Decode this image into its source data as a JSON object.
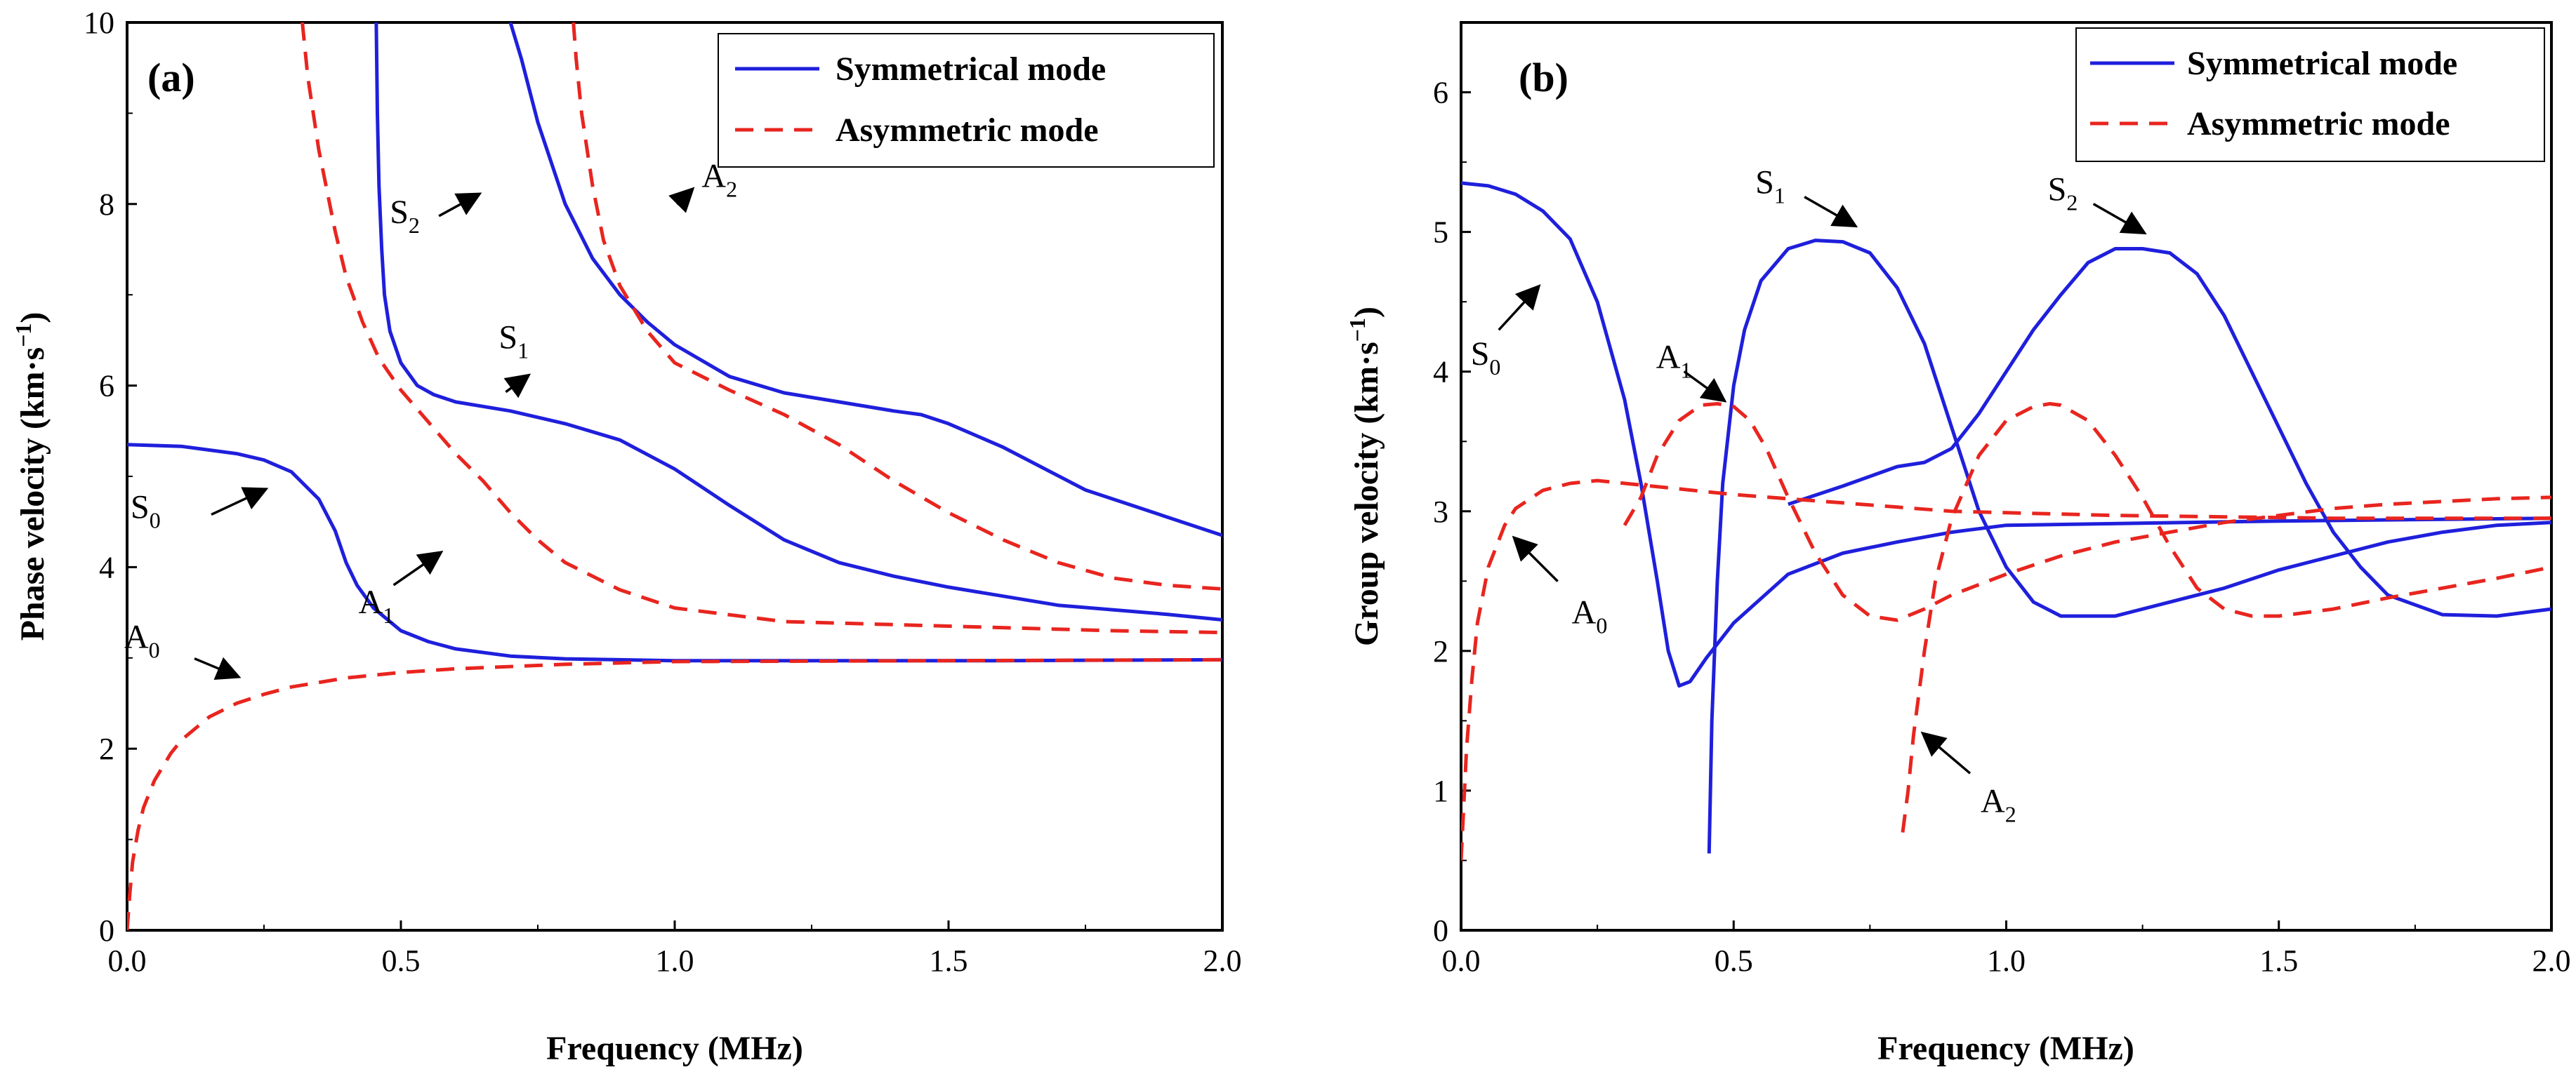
{
  "chart_data": [
    {
      "id": "a",
      "type": "line",
      "panel_label": "(a)",
      "xlabel": "Frequency (MHz)",
      "ylabel": "Phase velocity (km·s",
      "ylabel_sup": "−1",
      "ylabel_close": ")",
      "xlim": [
        0,
        2
      ],
      "ylim": [
        0,
        10
      ],
      "xticks": [
        "0.0",
        "0.5",
        "1.0",
        "1.5",
        "2.0"
      ],
      "yticks": [
        "0",
        "2",
        "4",
        "6",
        "8",
        "10"
      ],
      "legend": {
        "position": "top-right",
        "entries": [
          "Symmetrical mode",
          "Asymmetric mode"
        ]
      },
      "series": [
        {
          "name": "S0",
          "mode": "symmetrical",
          "x": [
            0,
            0.1,
            0.2,
            0.25,
            0.3,
            0.35,
            0.38,
            0.4,
            0.42,
            0.45,
            0.5,
            0.55,
            0.6,
            0.7,
            0.8,
            1.0,
            1.3,
            1.6,
            2.0
          ],
          "y": [
            5.35,
            5.33,
            5.25,
            5.18,
            5.05,
            4.75,
            4.4,
            4.05,
            3.8,
            3.55,
            3.3,
            3.18,
            3.1,
            3.02,
            2.99,
            2.97,
            2.97,
            2.97,
            2.98
          ]
        },
        {
          "name": "S1",
          "mode": "symmetrical",
          "x": [
            0.455,
            0.457,
            0.46,
            0.465,
            0.47,
            0.48,
            0.5,
            0.53,
            0.56,
            0.6,
            0.7,
            0.8,
            0.9,
            1.0,
            1.1,
            1.2,
            1.3,
            1.4,
            1.5,
            1.7,
            1.9,
            2.0
          ],
          "y": [
            10,
            9.0,
            8.2,
            7.5,
            7.0,
            6.6,
            6.25,
            6.0,
            5.9,
            5.82,
            5.72,
            5.58,
            5.4,
            5.08,
            4.68,
            4.3,
            4.05,
            3.9,
            3.78,
            3.58,
            3.48,
            3.42
          ]
        },
        {
          "name": "S2",
          "mode": "symmetrical",
          "x": [
            0.7,
            0.72,
            0.75,
            0.8,
            0.85,
            0.9,
            0.95,
            1.0,
            1.1,
            1.2,
            1.3,
            1.4,
            1.45,
            1.5,
            1.6,
            1.75,
            1.9,
            2.0
          ],
          "y": [
            10,
            9.6,
            8.9,
            8.0,
            7.4,
            7.0,
            6.7,
            6.45,
            6.1,
            5.92,
            5.82,
            5.72,
            5.68,
            5.58,
            5.32,
            4.85,
            4.55,
            4.35
          ]
        },
        {
          "name": "A0",
          "mode": "asymmetric",
          "x": [
            0,
            0.005,
            0.01,
            0.02,
            0.03,
            0.05,
            0.08,
            0.1,
            0.15,
            0.2,
            0.25,
            0.3,
            0.4,
            0.5,
            0.6,
            0.8,
            1.0,
            1.5,
            2.0
          ],
          "y": [
            0,
            0.4,
            0.75,
            1.1,
            1.35,
            1.65,
            1.95,
            2.1,
            2.35,
            2.5,
            2.6,
            2.68,
            2.78,
            2.84,
            2.88,
            2.93,
            2.96,
            2.97,
            2.98
          ]
        },
        {
          "name": "A1",
          "mode": "asymmetric",
          "x": [
            0.32,
            0.33,
            0.35,
            0.38,
            0.4,
            0.43,
            0.46,
            0.5,
            0.55,
            0.6,
            0.65,
            0.7,
            0.75,
            0.8,
            0.9,
            1.0,
            1.2,
            1.5,
            1.8,
            2.0
          ],
          "y": [
            10,
            9.4,
            8.6,
            7.7,
            7.2,
            6.7,
            6.3,
            5.95,
            5.6,
            5.25,
            4.95,
            4.6,
            4.3,
            4.05,
            3.75,
            3.55,
            3.4,
            3.35,
            3.3,
            3.28
          ]
        },
        {
          "name": "A2",
          "mode": "asymmetric",
          "x": [
            0.815,
            0.82,
            0.83,
            0.85,
            0.87,
            0.9,
            0.95,
            1.0,
            1.1,
            1.2,
            1.3,
            1.4,
            1.5,
            1.6,
            1.7,
            1.8,
            1.9,
            2.0
          ],
          "y": [
            10,
            9.6,
            9.0,
            8.2,
            7.6,
            7.1,
            6.6,
            6.25,
            5.95,
            5.68,
            5.35,
            4.95,
            4.6,
            4.3,
            4.05,
            3.88,
            3.8,
            3.76
          ]
        }
      ],
      "annotations": [
        {
          "label": "S",
          "sub": "0",
          "x": 0.25,
          "y": 4.85
        },
        {
          "label": "S",
          "sub": "1",
          "x": 0.73,
          "y": 6.1
        },
        {
          "label": "S",
          "sub": "2",
          "x": 0.64,
          "y": 8.1
        },
        {
          "label": "A",
          "sub": "0",
          "x": 0.2,
          "y": 2.8
        },
        {
          "label": "A",
          "sub": "1",
          "x": 0.57,
          "y": 4.15
        },
        {
          "label": "A",
          "sub": "2",
          "x": 1.03,
          "y": 8.15
        }
      ]
    },
    {
      "id": "b",
      "type": "line",
      "panel_label": "(b)",
      "xlabel": "Frequency (MHz)",
      "ylabel": "Group velocity (km·s",
      "ylabel_sup": "−1",
      "ylabel_close": ")",
      "xlim": [
        0,
        2
      ],
      "ylim": [
        0,
        6.5
      ],
      "xticks": [
        "0.0",
        "0.5",
        "1.0",
        "1.5",
        "2.0"
      ],
      "yticks": [
        "0",
        "1",
        "2",
        "3",
        "4",
        "5",
        "6"
      ],
      "legend": {
        "position": "top-right",
        "entries": [
          "Symmetrical mode",
          "Asymmetric mode"
        ]
      },
      "series": [
        {
          "name": "S0",
          "mode": "symmetrical",
          "x": [
            0,
            0.05,
            0.1,
            0.15,
            0.2,
            0.25,
            0.3,
            0.33,
            0.36,
            0.38,
            0.4,
            0.42,
            0.45,
            0.5,
            0.6,
            0.7,
            0.8,
            0.9,
            1.0,
            1.5,
            2.0
          ],
          "y": [
            5.35,
            5.33,
            5.27,
            5.15,
            4.95,
            4.5,
            3.8,
            3.2,
            2.5,
            2.0,
            1.75,
            1.78,
            1.95,
            2.2,
            2.55,
            2.7,
            2.78,
            2.85,
            2.9,
            2.93,
            2.95
          ]
        },
        {
          "name": "S1",
          "mode": "symmetrical",
          "x": [
            0.455,
            0.46,
            0.47,
            0.48,
            0.5,
            0.52,
            0.55,
            0.6,
            0.65,
            0.7,
            0.75,
            0.8,
            0.85,
            0.9,
            0.95,
            1.0,
            1.05,
            1.1,
            1.2,
            1.3,
            1.4,
            1.5,
            1.6,
            1.7,
            1.8,
            1.9,
            2.0
          ],
          "y": [
            0.55,
            1.5,
            2.5,
            3.2,
            3.9,
            4.3,
            4.65,
            4.88,
            4.94,
            4.93,
            4.85,
            4.6,
            4.2,
            3.6,
            3.0,
            2.6,
            2.35,
            2.25,
            2.25,
            2.35,
            2.45,
            2.58,
            2.68,
            2.78,
            2.85,
            2.9,
            2.92
          ]
        },
        {
          "name": "S2",
          "mode": "symmetrical",
          "x": [
            0.6,
            0.7,
            0.75,
            0.8,
            0.85,
            0.9,
            0.95,
            1.0,
            1.05,
            1.1,
            1.15,
            1.2,
            1.25,
            1.3,
            1.35,
            1.4,
            1.45,
            1.5,
            1.55,
            1.6,
            1.65,
            1.7,
            1.8,
            1.9,
            2.0
          ],
          "y": [
            3.05,
            3.18,
            3.25,
            3.32,
            3.35,
            3.45,
            3.7,
            4.0,
            4.3,
            4.55,
            4.78,
            4.88,
            4.88,
            4.85,
            4.7,
            4.4,
            4.0,
            3.6,
            3.2,
            2.85,
            2.6,
            2.4,
            2.26,
            2.25,
            2.3
          ]
        },
        {
          "name": "A0",
          "mode": "asymmetric",
          "x": [
            0,
            0.01,
            0.02,
            0.03,
            0.05,
            0.08,
            0.1,
            0.15,
            0.2,
            0.25,
            0.3,
            0.4,
            0.5,
            0.6,
            0.7,
            0.8,
            0.9,
            1.0,
            1.2,
            1.4,
            1.6,
            1.8,
            2.0
          ],
          "y": [
            0.5,
            1.3,
            1.8,
            2.2,
            2.6,
            2.9,
            3.02,
            3.15,
            3.2,
            3.22,
            3.2,
            3.16,
            3.12,
            3.09,
            3.06,
            3.03,
            3.0,
            2.99,
            2.97,
            2.96,
            2.95,
            2.95,
            2.95
          ]
        },
        {
          "name": "A1",
          "mode": "asymmetric",
          "x": [
            0.3,
            0.33,
            0.36,
            0.4,
            0.44,
            0.47,
            0.5,
            0.53,
            0.56,
            0.6,
            0.65,
            0.7,
            0.75,
            0.8,
            0.85,
            0.9,
            1.0,
            1.1,
            1.2,
            1.3,
            1.4,
            1.5,
            1.6,
            1.7,
            1.8,
            1.9,
            2.0
          ],
          "y": [
            2.9,
            3.1,
            3.4,
            3.65,
            3.76,
            3.77,
            3.75,
            3.65,
            3.45,
            3.1,
            2.7,
            2.4,
            2.25,
            2.22,
            2.3,
            2.4,
            2.55,
            2.68,
            2.78,
            2.85,
            2.92,
            2.97,
            3.02,
            3.05,
            3.07,
            3.09,
            3.1
          ]
        },
        {
          "name": "A2",
          "mode": "asymmetric",
          "x": [
            0.81,
            0.82,
            0.83,
            0.85,
            0.87,
            0.9,
            0.95,
            1.0,
            1.05,
            1.08,
            1.1,
            1.15,
            1.2,
            1.25,
            1.3,
            1.35,
            1.4,
            1.45,
            1.5,
            1.6,
            1.7,
            1.8,
            1.9,
            2.0
          ],
          "y": [
            0.7,
            1.0,
            1.4,
            2.0,
            2.5,
            2.95,
            3.4,
            3.65,
            3.75,
            3.77,
            3.76,
            3.65,
            3.4,
            3.1,
            2.75,
            2.45,
            2.3,
            2.25,
            2.25,
            2.3,
            2.38,
            2.45,
            2.52,
            2.6
          ]
        }
      ],
      "annotations": [
        {
          "label": "S",
          "sub": "0",
          "x": 0.14,
          "y": 4.6
        },
        {
          "label": "S",
          "sub": "1",
          "x": 0.72,
          "y": 5.05
        },
        {
          "label": "S",
          "sub": "2",
          "x": 1.25,
          "y": 5.0
        },
        {
          "label": "A",
          "sub": "0",
          "x": 0.1,
          "y": 2.8
        },
        {
          "label": "A",
          "sub": "1",
          "x": 0.48,
          "y": 3.8
        },
        {
          "label": "A",
          "sub": "2",
          "x": 0.85,
          "y": 1.4
        }
      ]
    }
  ]
}
